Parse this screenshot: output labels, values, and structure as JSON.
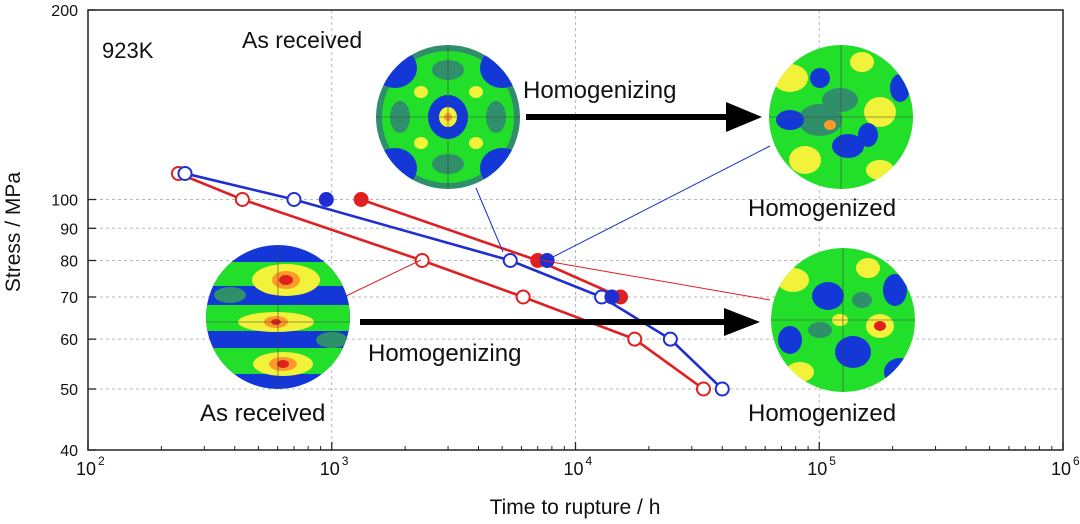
{
  "chart_data": {
    "type": "scatter",
    "title": "",
    "annotation_temperature": "923K",
    "xlabel": "Time to rupture / h",
    "ylabel": "Stress / MPa",
    "xscale": "log",
    "yscale": "log",
    "xlim": [
      100,
      1000000
    ],
    "ylim": [
      40,
      200
    ],
    "x_ticks": [
      {
        "value": 100,
        "base": "10",
        "exp": "2"
      },
      {
        "value": 1000,
        "base": "10",
        "exp": "3"
      },
      {
        "value": 10000,
        "base": "10",
        "exp": "4"
      },
      {
        "value": 100000,
        "base": "10",
        "exp": "5"
      },
      {
        "value": 1000000,
        "base": "10",
        "exp": "6"
      }
    ],
    "y_ticks": [
      {
        "value": 200,
        "label": "200"
      },
      {
        "value": 100,
        "label": "100"
      },
      {
        "value": 90,
        "label": "90"
      },
      {
        "value": 80,
        "label": "80"
      },
      {
        "value": 70,
        "label": "70"
      },
      {
        "value": 60,
        "label": "60"
      },
      {
        "value": 50,
        "label": "50"
      },
      {
        "value": 40,
        "label": "40"
      }
    ],
    "grid": true,
    "series": [
      {
        "name": "Red open (as received, fitted)",
        "color": "#e02020",
        "filled": false,
        "connected": true,
        "points": [
          [
            235,
            110
          ],
          [
            430,
            100
          ],
          [
            2350,
            80
          ],
          [
            6100,
            70
          ],
          [
            17500,
            60
          ],
          [
            33500,
            50
          ]
        ]
      },
      {
        "name": "Blue open (as received, fitted)",
        "color": "#1f2fcf",
        "filled": false,
        "connected": true,
        "points": [
          [
            250,
            110
          ],
          [
            700,
            100
          ],
          [
            5400,
            80
          ],
          [
            12800,
            70
          ],
          [
            24500,
            60
          ],
          [
            40000,
            50
          ]
        ]
      },
      {
        "name": "Red filled (homogenized)",
        "color": "#e02020",
        "filled": true,
        "connected": true,
        "points": [
          [
            1320,
            100
          ],
          [
            7000,
            80
          ],
          [
            15300,
            70
          ]
        ]
      },
      {
        "name": "Blue filled (homogenized)",
        "color": "#1f2fcf",
        "filled": true,
        "connected": false,
        "points": [
          [
            950,
            100
          ],
          [
            7650,
            80
          ],
          [
            14100,
            70
          ]
        ]
      }
    ],
    "annotations": [
      {
        "id": "upper-as-received",
        "text": "As received"
      },
      {
        "id": "upper-homogenizing",
        "text": "Homogenizing"
      },
      {
        "id": "upper-homogenized",
        "text": "Homogenized"
      },
      {
        "id": "lower-as-received",
        "text": "As received"
      },
      {
        "id": "lower-homogenizing",
        "text": "Homogenizing"
      },
      {
        "id": "lower-homogenized",
        "text": "Homogenized"
      }
    ],
    "colors": {
      "pole_blue": "#1438d8",
      "pole_teal": "#2f8f6a",
      "pole_green": "#22e02a",
      "pole_yellow": "#f2f23a",
      "pole_orange": "#ff9a2a",
      "pole_red": "#e0201a",
      "arrow": "#000000",
      "grid": "#b8b8b8"
    }
  }
}
